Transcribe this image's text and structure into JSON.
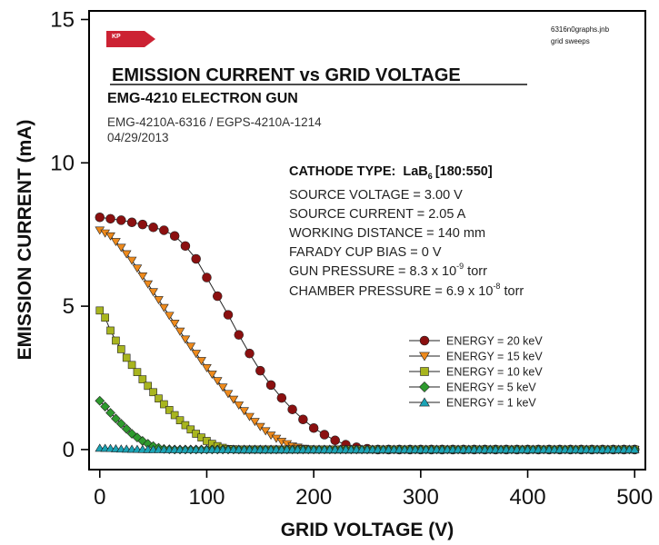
{
  "chart_data": {
    "type": "scatter",
    "title": "EMISSION CURRENT vs GRID VOLTAGE",
    "subtitle": "EMG-4210 ELECTRON GUN",
    "info_lines": [
      "EMG-4210A-6316 / EGPS-4210A-1214",
      "04/29/2013"
    ],
    "xlabel": "GRID VOLTAGE (V)",
    "ylabel": "EMISSION CURRENT (mA)",
    "xlim": [
      -10,
      510
    ],
    "ylim": [
      -0.7,
      15.3
    ],
    "xticks": [
      "0",
      "100",
      "200",
      "300",
      "400",
      "500"
    ],
    "yticks": [
      "0",
      "5",
      "10",
      "15"
    ],
    "logo_text": "KP",
    "file_note": [
      "6316n0graphs.jnb",
      "grid sweeps"
    ],
    "parameters": {
      "cathode_label": "CATHODE TYPE:",
      "cathode_main": "LaB",
      "cathode_sub": "6",
      "cathode_range": "[180:550]",
      "source_voltage": "SOURCE VOLTAGE = 3.00 V",
      "source_current": "SOURCE CURRENT = 2.05 A",
      "working_distance": "WORKING DISTANCE = 140 mm",
      "faraday_bias": "FARADY CUP BIAS = 0 V",
      "gun_pressure_prefix": "GUN PRESSURE = 8.3 x 10",
      "gun_pressure_exp": "-9",
      "gun_pressure_unit": " torr",
      "chamber_pressure_prefix": "CHAMBER PRESSURE = 6.9 x 10",
      "chamber_pressure_exp": "-8",
      "chamber_pressure_unit": " torr"
    },
    "legend_position": "right",
    "series": [
      {
        "name": "ENERGY = 20 keV",
        "marker": "circle",
        "color": "#8b1010",
        "points": [
          [
            0,
            8.1
          ],
          [
            20,
            8.0
          ],
          [
            40,
            7.85
          ],
          [
            60,
            7.65
          ],
          [
            70,
            7.45
          ],
          [
            80,
            7.1
          ],
          [
            90,
            6.65
          ],
          [
            100,
            6.0
          ],
          [
            110,
            5.35
          ],
          [
            120,
            4.7
          ],
          [
            130,
            4.0
          ],
          [
            140,
            3.35
          ],
          [
            150,
            2.75
          ],
          [
            160,
            2.25
          ],
          [
            170,
            1.8
          ],
          [
            180,
            1.4
          ],
          [
            190,
            1.05
          ],
          [
            200,
            0.75
          ],
          [
            210,
            0.52
          ],
          [
            220,
            0.32
          ],
          [
            230,
            0.17
          ],
          [
            240,
            0.08
          ],
          [
            250,
            0.03
          ],
          [
            260,
            0.0
          ],
          [
            280,
            0.0
          ],
          [
            300,
            0.0
          ],
          [
            350,
            0.0
          ],
          [
            400,
            0.0
          ],
          [
            450,
            0.0
          ],
          [
            500,
            0.0
          ]
        ]
      },
      {
        "name": "ENERGY = 15 keV",
        "marker": "triangle-down",
        "color": "#ee8a1c",
        "points": [
          [
            0,
            7.65
          ],
          [
            10,
            7.45
          ],
          [
            20,
            7.05
          ],
          [
            30,
            6.6
          ],
          [
            40,
            6.05
          ],
          [
            50,
            5.5
          ],
          [
            60,
            4.95
          ],
          [
            70,
            4.4
          ],
          [
            80,
            3.85
          ],
          [
            90,
            3.35
          ],
          [
            100,
            2.85
          ],
          [
            110,
            2.4
          ],
          [
            120,
            1.95
          ],
          [
            130,
            1.55
          ],
          [
            140,
            1.15
          ],
          [
            150,
            0.8
          ],
          [
            160,
            0.5
          ],
          [
            170,
            0.28
          ],
          [
            180,
            0.12
          ],
          [
            190,
            0.04
          ],
          [
            200,
            0.0
          ],
          [
            250,
            0.0
          ],
          [
            300,
            0.0
          ],
          [
            350,
            0.0
          ],
          [
            400,
            0.0
          ],
          [
            450,
            0.0
          ],
          [
            500,
            0.0
          ]
        ]
      },
      {
        "name": "ENERGY = 10 keV",
        "marker": "square",
        "color": "#a8b51e",
        "points": [
          [
            0,
            4.85
          ],
          [
            5,
            4.6
          ],
          [
            10,
            4.15
          ],
          [
            15,
            3.8
          ],
          [
            20,
            3.5
          ],
          [
            25,
            3.2
          ],
          [
            30,
            2.95
          ],
          [
            35,
            2.7
          ],
          [
            40,
            2.45
          ],
          [
            45,
            2.22
          ],
          [
            50,
            2.0
          ],
          [
            55,
            1.78
          ],
          [
            60,
            1.58
          ],
          [
            65,
            1.38
          ],
          [
            70,
            1.2
          ],
          [
            75,
            1.02
          ],
          [
            80,
            0.85
          ],
          [
            85,
            0.7
          ],
          [
            90,
            0.55
          ],
          [
            95,
            0.42
          ],
          [
            100,
            0.3
          ],
          [
            105,
            0.2
          ],
          [
            110,
            0.12
          ],
          [
            115,
            0.06
          ],
          [
            120,
            0.02
          ],
          [
            130,
            0.0
          ],
          [
            150,
            0.0
          ],
          [
            200,
            0.0
          ],
          [
            300,
            0.0
          ],
          [
            400,
            0.0
          ],
          [
            500,
            0.0
          ]
        ]
      },
      {
        "name": "ENERGY =  5 keV",
        "marker": "diamond",
        "color": "#2e9a2e",
        "points": [
          [
            0,
            1.7
          ],
          [
            5,
            1.5
          ],
          [
            10,
            1.28
          ],
          [
            15,
            1.08
          ],
          [
            20,
            0.9
          ],
          [
            25,
            0.72
          ],
          [
            30,
            0.55
          ],
          [
            35,
            0.42
          ],
          [
            40,
            0.3
          ],
          [
            45,
            0.2
          ],
          [
            50,
            0.12
          ],
          [
            55,
            0.06
          ],
          [
            60,
            0.02
          ],
          [
            70,
            0.0
          ],
          [
            100,
            0.0
          ],
          [
            200,
            0.0
          ],
          [
            300,
            0.0
          ],
          [
            400,
            0.0
          ],
          [
            500,
            0.0
          ]
        ]
      },
      {
        "name": "ENERGY =  1 keV",
        "marker": "triangle-up",
        "color": "#1aa3b5",
        "points": [
          [
            0,
            0.05
          ],
          [
            10,
            0.04
          ],
          [
            20,
            0.02
          ],
          [
            50,
            0.0
          ],
          [
            100,
            0.0
          ],
          [
            150,
            0.0
          ],
          [
            200,
            0.0
          ],
          [
            250,
            0.0
          ],
          [
            300,
            0.0
          ],
          [
            350,
            0.0
          ],
          [
            400,
            0.0
          ],
          [
            450,
            0.0
          ],
          [
            500,
            0.0
          ]
        ]
      }
    ]
  }
}
